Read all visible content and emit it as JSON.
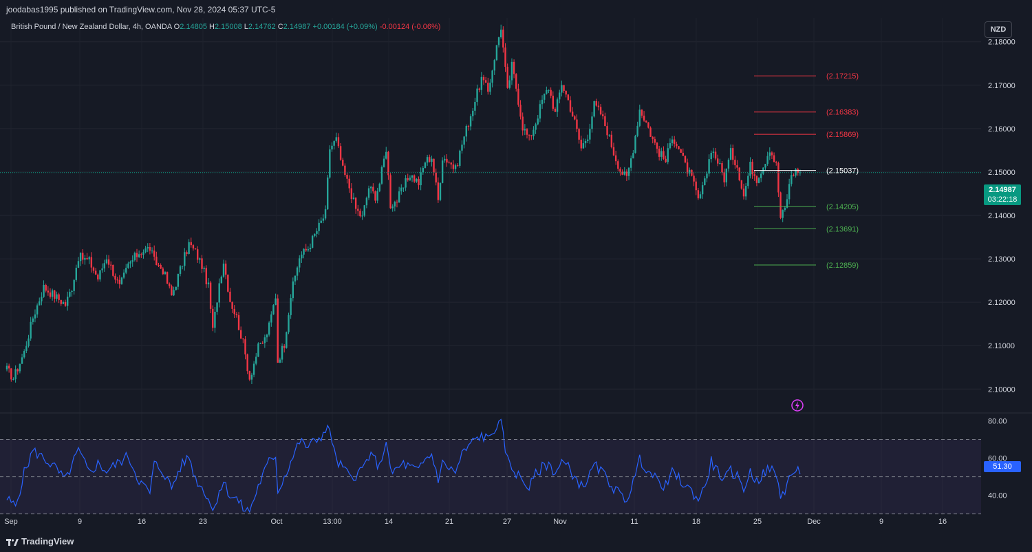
{
  "header": {
    "publisher": "joodabas1995 published on TradingView.com, Nov 28, 2024 05:37 UTC-5"
  },
  "legend": {
    "symbol": "British Pound / New Zealand Dollar, 4h, OANDA",
    "open_label": "O",
    "open": "2.14805",
    "high_label": "H",
    "high": "2.15008",
    "low_label": "L",
    "low": "2.14762",
    "close_label": "C",
    "close": "2.14987",
    "change": "+0.00184 (+0.09%)",
    "change2": "-0.00124 (-0.06%)"
  },
  "currency_button": "NZD",
  "colors": {
    "background": "#161a25",
    "up": "#26a69a",
    "down": "#f23645",
    "rsi_line": "#2962ff",
    "rsi_band": "#7e57c2"
  },
  "last_price": {
    "value": "2.14987",
    "countdown": "03:22:18"
  },
  "rsi_value": "51.30",
  "footer": {
    "brand": "TradingView"
  },
  "chart_data": [
    {
      "type": "candlestick",
      "title": "British Pound / New Zealand Dollar, 4h, OANDA",
      "ylim": [
        2.0945,
        2.1855
      ],
      "y_ticks": [
        2.1,
        2.11,
        2.12,
        2.13,
        2.14,
        2.15,
        2.16,
        2.17,
        2.18
      ],
      "y_tick_labels": [
        "2.10000",
        "2.11000",
        "2.12000",
        "2.13000",
        "2.14000",
        "2.15000",
        "2.16000",
        "2.17000",
        "2.18000"
      ],
      "x_tick_labels": [
        "Sep",
        "9",
        "16",
        "23",
        "Oct",
        "13:00",
        "14",
        "21",
        "27",
        "Nov",
        "11",
        "18",
        "25",
        "Dec",
        "9",
        "16"
      ],
      "price_path": [
        [
          0,
          2.1045
        ],
        [
          3,
          2.1025
        ],
        [
          8,
          2.1085
        ],
        [
          12,
          2.1165
        ],
        [
          17,
          2.1235
        ],
        [
          22,
          2.1215
        ],
        [
          27,
          2.1195
        ],
        [
          30,
          2.1235
        ],
        [
          33,
          2.1305
        ],
        [
          38,
          2.1295
        ],
        [
          42,
          2.1255
        ],
        [
          46,
          2.1305
        ],
        [
          52,
          2.1235
        ],
        [
          56,
          2.1285
        ],
        [
          61,
          2.1315
        ],
        [
          66,
          2.1325
        ],
        [
          68,
          2.1295
        ],
        [
          72,
          2.1275
        ],
        [
          76,
          2.1215
        ],
        [
          80,
          2.1275
        ],
        [
          84,
          2.1335
        ],
        [
          87,
          2.1315
        ],
        [
          90,
          2.1285
        ],
        [
          93,
          2.1235
        ],
        [
          95,
          2.1135
        ],
        [
          98,
          2.1245
        ],
        [
          100,
          2.1295
        ],
        [
          103,
          2.1205
        ],
        [
          106,
          2.1165
        ],
        [
          109,
          2.1105
        ],
        [
          112,
          2.1025
        ],
        [
          116,
          2.1095
        ],
        [
          119,
          2.1115
        ],
        [
          121,
          2.1145
        ],
        [
          124,
          2.1215
        ],
        [
          125,
          2.1065
        ],
        [
          128,
          2.1105
        ],
        [
          131,
          2.1215
        ],
        [
          135,
          2.1305
        ],
        [
          139,
          2.1325
        ],
        [
          143,
          2.1365
        ],
        [
          147,
          2.1405
        ],
        [
          149,
          2.1555
        ],
        [
          152,
          2.1575
        ],
        [
          155,
          2.1505
        ],
        [
          158,
          2.1465
        ],
        [
          161,
          2.1415
        ],
        [
          164,
          2.1395
        ],
        [
          167,
          2.1465
        ],
        [
          170,
          2.1445
        ],
        [
          172,
          2.1475
        ],
        [
          175,
          2.1555
        ],
        [
          177,
          2.1425
        ],
        [
          180,
          2.1435
        ],
        [
          183,
          2.1465
        ],
        [
          186,
          2.1495
        ],
        [
          190,
          2.1475
        ],
        [
          193,
          2.1525
        ],
        [
          196,
          2.1535
        ],
        [
          199,
          2.1435
        ],
        [
          201,
          2.1535
        ],
        [
          204,
          2.1525
        ],
        [
          207,
          2.1505
        ],
        [
          210,
          2.1565
        ],
        [
          213,
          2.1615
        ],
        [
          216,
          2.1665
        ],
        [
          219,
          2.1715
        ],
        [
          222,
          2.1685
        ],
        [
          225,
          2.1765
        ],
        [
          228,
          2.1835
        ],
        [
          231,
          2.1685
        ],
        [
          233,
          2.1745
        ],
        [
          235,
          2.1695
        ],
        [
          238,
          2.1605
        ],
        [
          241,
          2.1575
        ],
        [
          244,
          2.1615
        ],
        [
          247,
          2.1665
        ],
        [
          250,
          2.1695
        ],
        [
          253,
          2.1635
        ],
        [
          256,
          2.1705
        ],
        [
          259,
          2.1665
        ],
        [
          262,
          2.1615
        ],
        [
          265,
          2.1555
        ],
        [
          268,
          2.1585
        ],
        [
          271,
          2.1655
        ],
        [
          274,
          2.1635
        ],
        [
          277,
          2.1595
        ],
        [
          280,
          2.1545
        ],
        [
          283,
          2.1505
        ],
        [
          286,
          2.1485
        ],
        [
          289,
          2.1555
        ],
        [
          292,
          2.1645
        ],
        [
          295,
          2.1615
        ],
        [
          298,
          2.1575
        ],
        [
          301,
          2.1545
        ],
        [
          304,
          2.1525
        ],
        [
          307,
          2.1585
        ],
        [
          310,
          2.1555
        ],
        [
          313,
          2.1515
        ],
        [
          316,
          2.1485
        ],
        [
          319,
          2.1435
        ],
        [
          322,
          2.1475
        ],
        [
          325,
          2.1555
        ],
        [
          328,
          2.1525
        ],
        [
          331,
          2.1485
        ],
        [
          334,
          2.1545
        ],
        [
          337,
          2.1515
        ],
        [
          340,
          2.1445
        ],
        [
          343,
          2.1515
        ],
        [
          346,
          2.1485
        ],
        [
          349,
          2.1515
        ],
        [
          352,
          2.1555
        ],
        [
          355,
          2.1515
        ],
        [
          357,
          2.1395
        ],
        [
          359,
          2.1415
        ],
        [
          362,
          2.1495
        ],
        [
          365,
          2.1505
        ],
        [
          366,
          2.1499
        ]
      ]
    },
    {
      "type": "line",
      "title": "RSI",
      "ylim": [
        29.5,
        83.5
      ],
      "y_ticks": [
        40,
        60,
        80
      ],
      "y_tick_labels": [
        "40.00",
        "60.00",
        "80.00"
      ],
      "bands": [
        30,
        50,
        70
      ],
      "rsi_path": [
        [
          0,
          38
        ],
        [
          4,
          34
        ],
        [
          8,
          52
        ],
        [
          12,
          64
        ],
        [
          17,
          60
        ],
        [
          22,
          55
        ],
        [
          27,
          48
        ],
        [
          30,
          56
        ],
        [
          33,
          64
        ],
        [
          38,
          52
        ],
        [
          42,
          57
        ],
        [
          46,
          53
        ],
        [
          52,
          58
        ],
        [
          56,
          61
        ],
        [
          61,
          48
        ],
        [
          66,
          41
        ],
        [
          68,
          57
        ],
        [
          72,
          53
        ],
        [
          76,
          44
        ],
        [
          80,
          55
        ],
        [
          84,
          61
        ],
        [
          87,
          49
        ],
        [
          90,
          44
        ],
        [
          93,
          39
        ],
        [
          95,
          31
        ],
        [
          98,
          43
        ],
        [
          100,
          47
        ],
        [
          103,
          40
        ],
        [
          106,
          38
        ],
        [
          109,
          33
        ],
        [
          112,
          31
        ],
        [
          116,
          45
        ],
        [
          119,
          53
        ],
        [
          121,
          58
        ],
        [
          124,
          62
        ],
        [
          125,
          42
        ],
        [
          128,
          50
        ],
        [
          131,
          58
        ],
        [
          135,
          69
        ],
        [
          139,
          66
        ],
        [
          143,
          70
        ],
        [
          147,
          74
        ],
        [
          149,
          76
        ],
        [
          152,
          58
        ],
        [
          155,
          55
        ],
        [
          158,
          50
        ],
        [
          161,
          51
        ],
        [
          164,
          54
        ],
        [
          167,
          61
        ],
        [
          170,
          59
        ],
        [
          172,
          55
        ],
        [
          175,
          70
        ],
        [
          177,
          52
        ],
        [
          180,
          54
        ],
        [
          183,
          57
        ],
        [
          186,
          55
        ],
        [
          190,
          53
        ],
        [
          193,
          59
        ],
        [
          196,
          62
        ],
        [
          199,
          49
        ],
        [
          201,
          57
        ],
        [
          204,
          55
        ],
        [
          207,
          52
        ],
        [
          210,
          62
        ],
        [
          213,
          66
        ],
        [
          216,
          70
        ],
        [
          219,
          72
        ],
        [
          222,
          70
        ],
        [
          225,
          76
        ],
        [
          228,
          78
        ],
        [
          231,
          59
        ],
        [
          233,
          55
        ],
        [
          235,
          52
        ],
        [
          238,
          48
        ],
        [
          241,
          44
        ],
        [
          244,
          51
        ],
        [
          247,
          55
        ],
        [
          250,
          57
        ],
        [
          253,
          52
        ],
        [
          256,
          58
        ],
        [
          259,
          55
        ],
        [
          262,
          50
        ],
        [
          265,
          45
        ],
        [
          268,
          48
        ],
        [
          271,
          56
        ],
        [
          274,
          53
        ],
        [
          277,
          49
        ],
        [
          280,
          44
        ],
        [
          283,
          40
        ],
        [
          286,
          38
        ],
        [
          289,
          47
        ],
        [
          292,
          59
        ],
        [
          295,
          55
        ],
        [
          298,
          50
        ],
        [
          301,
          47
        ],
        [
          304,
          45
        ],
        [
          307,
          52
        ],
        [
          310,
          49
        ],
        [
          313,
          45
        ],
        [
          316,
          42
        ],
        [
          319,
          38
        ],
        [
          322,
          44
        ],
        [
          325,
          58
        ],
        [
          328,
          53
        ],
        [
          331,
          48
        ],
        [
          334,
          53
        ],
        [
          337,
          50
        ],
        [
          340,
          44
        ],
        [
          343,
          52
        ],
        [
          346,
          48
        ],
        [
          349,
          51
        ],
        [
          352,
          55
        ],
        [
          355,
          50
        ],
        [
          357,
          40
        ],
        [
          359,
          43
        ],
        [
          362,
          52
        ],
        [
          365,
          53
        ],
        [
          366,
          51.3
        ]
      ]
    }
  ],
  "levels": [
    {
      "value": "2.17215",
      "kind": "resistance"
    },
    {
      "value": "2.16383",
      "kind": "resistance"
    },
    {
      "value": "2.15869",
      "kind": "resistance"
    },
    {
      "value": "2.15037",
      "kind": "pivot"
    },
    {
      "value": "2.14205",
      "kind": "support"
    },
    {
      "value": "2.13691",
      "kind": "support"
    },
    {
      "value": "2.12859",
      "kind": "support"
    }
  ]
}
